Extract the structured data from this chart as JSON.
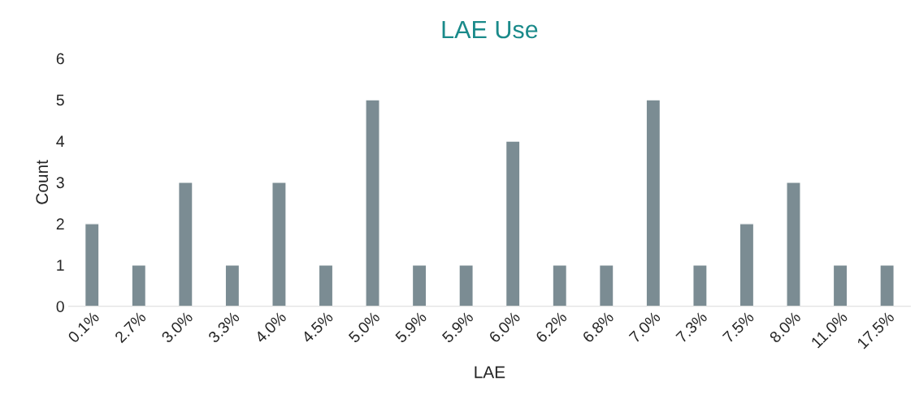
{
  "chart_data": {
    "type": "bar",
    "title": "LAE Use",
    "xlabel": "LAE",
    "ylabel": "Count",
    "categories": [
      "0.1%",
      "2.7%",
      "3.0%",
      "3.3%",
      "4.0%",
      "4.5%",
      "5.0%",
      "5.9%",
      "5.9%",
      "6.0%",
      "6.2%",
      "6.8%",
      "7.0%",
      "7.3%",
      "7.5%",
      "8.0%",
      "11.0%",
      "17.5%"
    ],
    "values": [
      2,
      1,
      3,
      1,
      3,
      1,
      5,
      1,
      1,
      4,
      1,
      1,
      5,
      1,
      2,
      3,
      1,
      1
    ],
    "color": "#7b8c93",
    "ylim": [
      0,
      6
    ],
    "yticks": [
      0,
      1,
      2,
      3,
      4,
      5,
      6
    ],
    "grid": false,
    "legend": false
  }
}
